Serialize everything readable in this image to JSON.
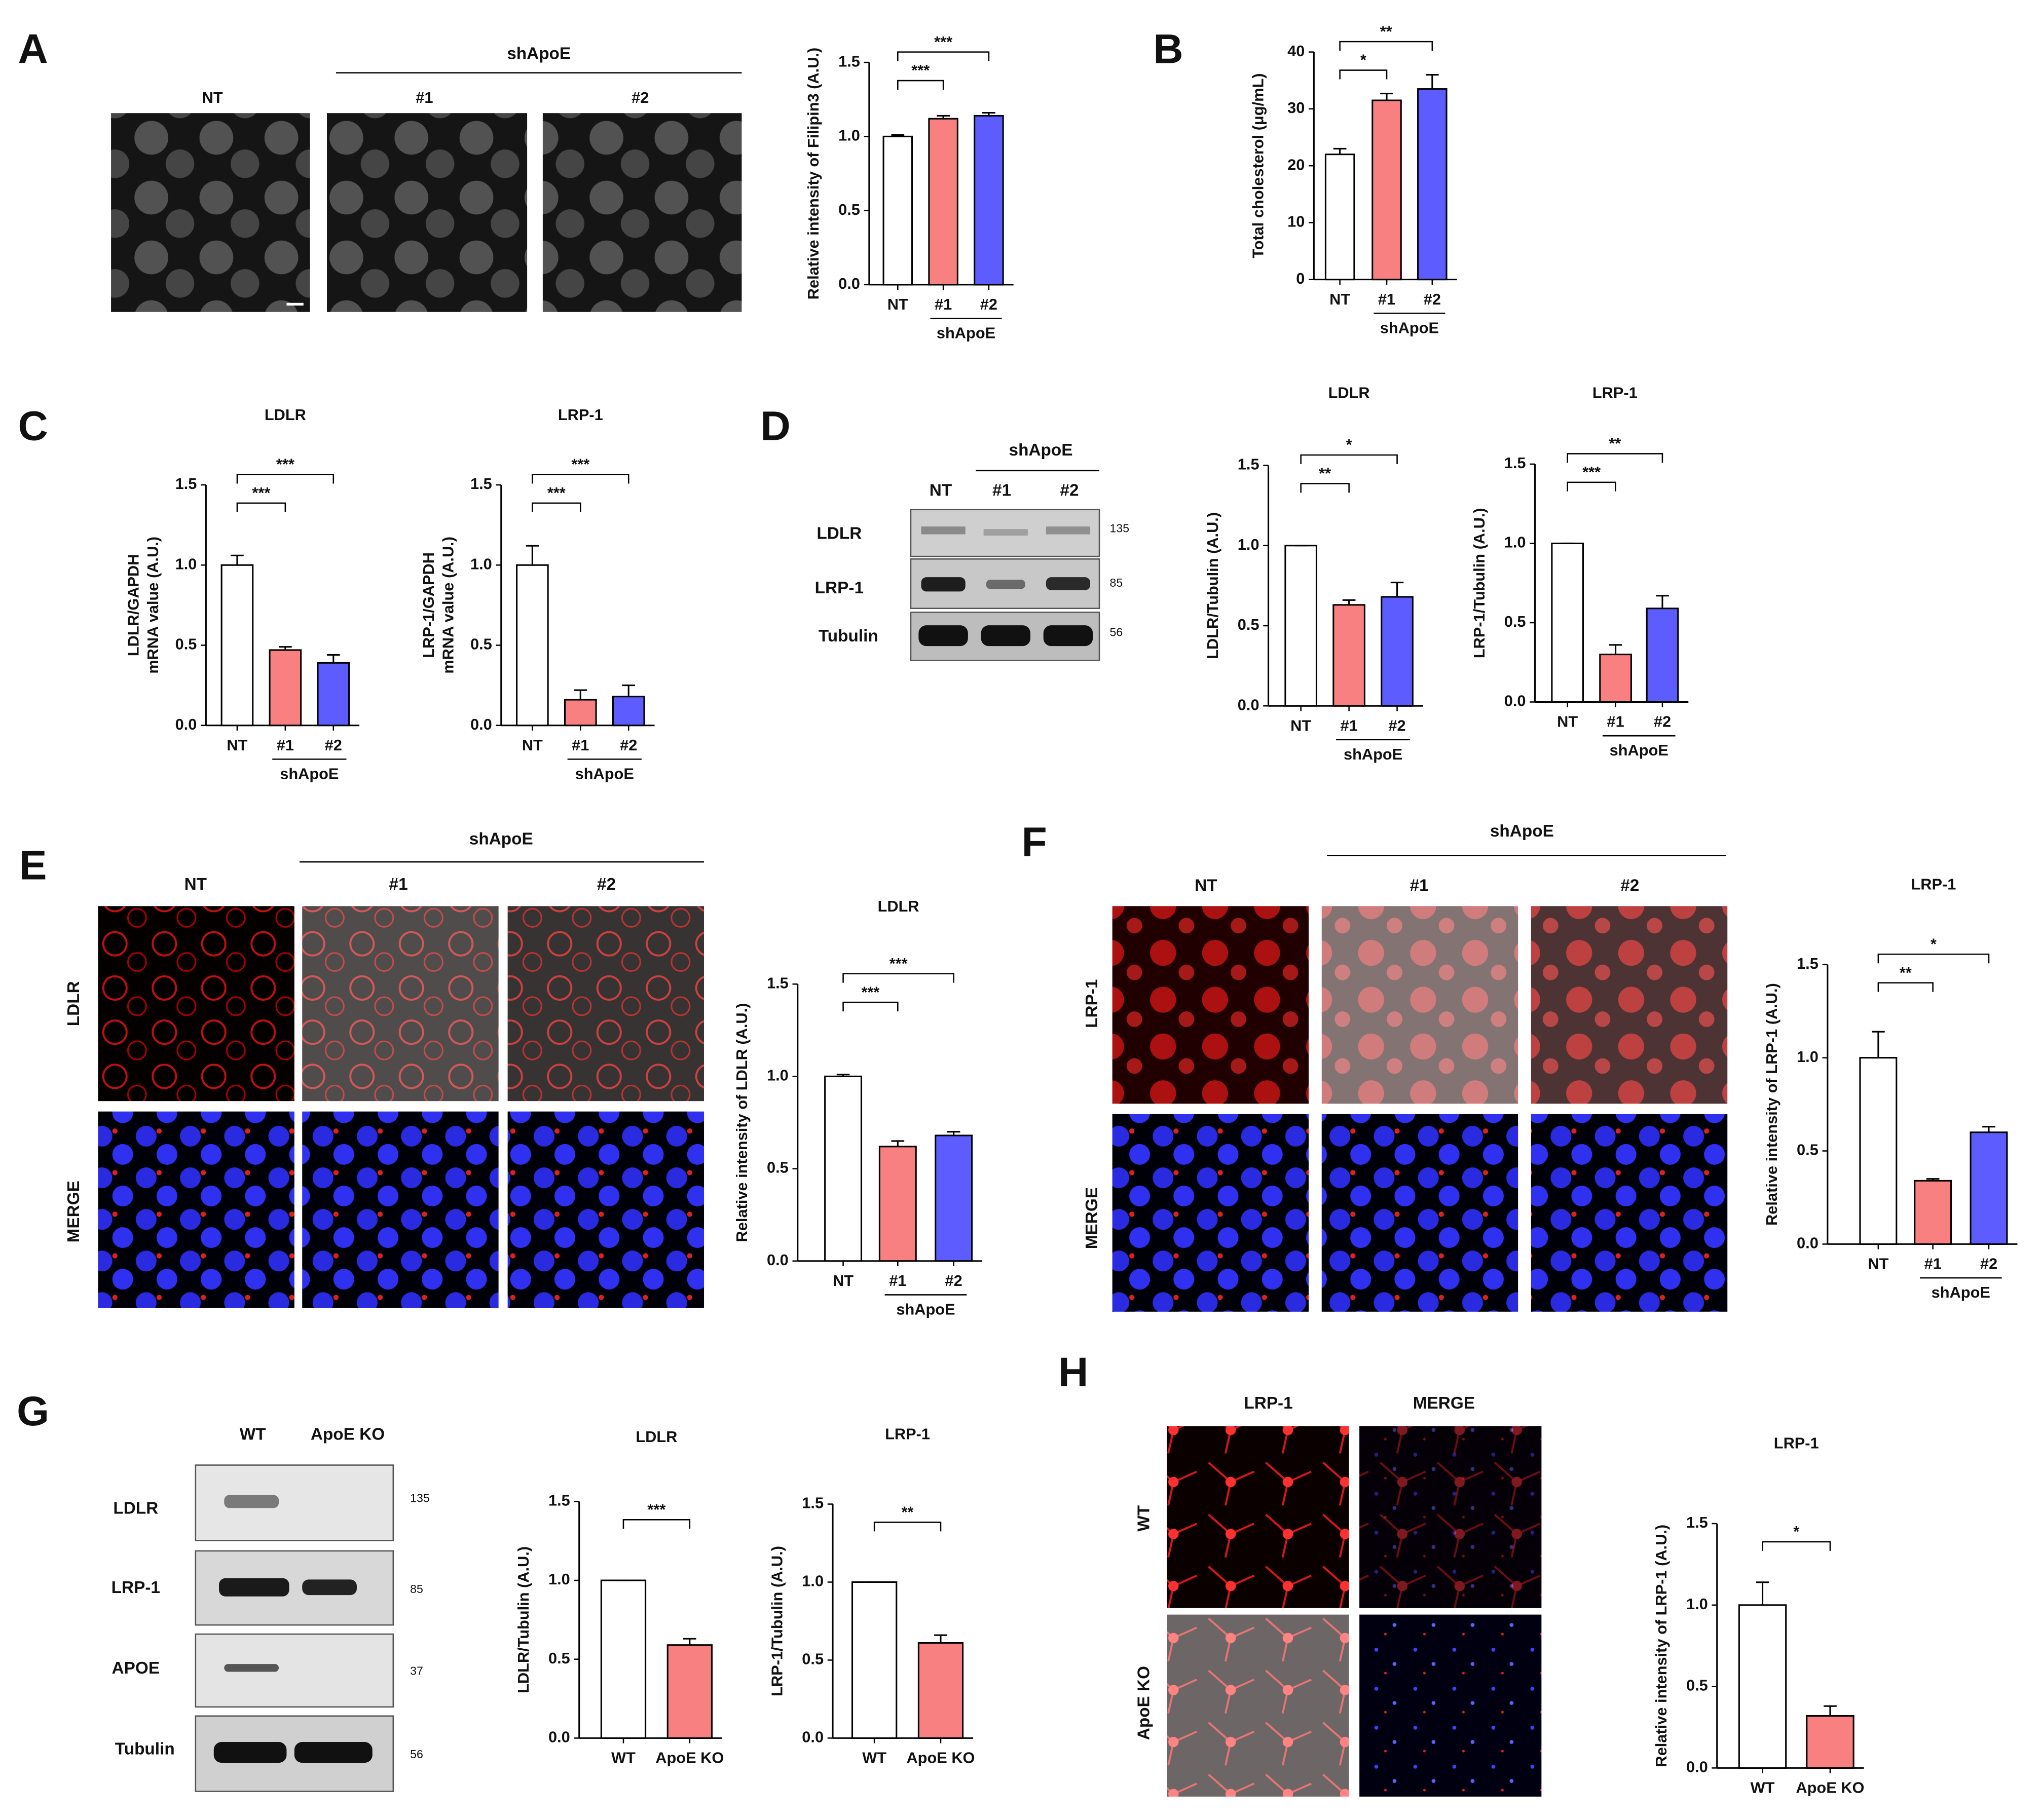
{
  "figure": {
    "panel_letters": [
      "A",
      "B",
      "C",
      "D",
      "E",
      "F",
      "G",
      "H"
    ],
    "A": {
      "group": "shApoE",
      "lanes": [
        "NT",
        "#1",
        "#2"
      ]
    },
    "D": {
      "group": "shApoE",
      "lanes": [
        "NT",
        "#1",
        "#2"
      ],
      "rows": [
        "LDLR",
        "LRP-1",
        "Tubulin"
      ],
      "markers": [
        "135",
        "85",
        "56"
      ]
    },
    "E": {
      "group": "shApoE",
      "lanes": [
        "NT",
        "#1",
        "#2"
      ],
      "rows": [
        "LDLR",
        "MERGE"
      ]
    },
    "F": {
      "group": "shApoE",
      "lanes": [
        "NT",
        "#1",
        "#2"
      ],
      "rows": [
        "LRP-1",
        "MERGE"
      ]
    },
    "G": {
      "lanes": [
        "WT",
        "ApoE KO"
      ],
      "rows": [
        "LDLR",
        "LRP-1",
        "APOE",
        "Tubulin"
      ],
      "markers": [
        "135",
        "85",
        "37",
        "56"
      ]
    },
    "H": {
      "columns": [
        "LRP-1",
        "MERGE"
      ],
      "rows": [
        "WT",
        "ApoE KO"
      ]
    }
  },
  "chart_data": [
    {
      "type": "bar",
      "ylabel": "Relative intensity of Filipin3 (A.U.)",
      "categories": [
        "NT",
        "#1",
        "#2"
      ],
      "group_label": "shApoE",
      "values": [
        1.0,
        1.12,
        1.14
      ],
      "error": [
        0.01,
        0.02,
        0.02
      ],
      "colors": [
        "#ffffff",
        "#f88080",
        "#5c5cff"
      ],
      "ylim": [
        0,
        1.5
      ],
      "yticks": [
        {
          "value": 0,
          "label": "0.0"
        },
        {
          "value": 0.5,
          "label": "0.5"
        },
        {
          "value": 1,
          "label": "1.0"
        },
        {
          "value": 1.5,
          "label": "1.5"
        }
      ],
      "annotations": [
        "***",
        "***"
      ]
    },
    {
      "type": "bar",
      "ylabel": "Total cholesterol (μg/mL)",
      "categories": [
        "NT",
        "#1",
        "#2"
      ],
      "group_label": "shApoE",
      "values": [
        22,
        31.5,
        33.5
      ],
      "error": [
        1,
        1.2,
        2.5
      ],
      "colors": [
        "#ffffff",
        "#f88080",
        "#5c5cff"
      ],
      "ylim": [
        0,
        40
      ],
      "yticks": [
        0,
        10,
        20,
        30,
        40
      ],
      "annotations": [
        "*",
        "**"
      ]
    },
    {
      "type": "bar",
      "title": "LDLR",
      "ylabel": [
        "LDLR/GAPDH",
        "mRNA value (A.U.)"
      ],
      "categories": [
        "NT",
        "#1",
        "#2"
      ],
      "group_label": "shApoE",
      "values": [
        1.0,
        0.47,
        0.39
      ],
      "error": [
        0.06,
        0.02,
        0.05
      ],
      "colors": [
        "#ffffff",
        "#f88080",
        "#5c5cff"
      ],
      "ylim": [
        0,
        1.5
      ],
      "yticks": [
        {
          "value": 0,
          "label": "0.0"
        },
        {
          "value": 0.5,
          "label": "0.5"
        },
        {
          "value": 1,
          "label": "1.0"
        },
        {
          "value": 1.5,
          "label": "1.5"
        }
      ],
      "annotations": [
        "***",
        "***"
      ]
    },
    {
      "type": "bar",
      "title": "LRP-1",
      "ylabel": [
        "LRP-1/GAPDH",
        "mRNA value (A.U.)"
      ],
      "categories": [
        "NT",
        "#1",
        "#2"
      ],
      "group_label": "shApoE",
      "values": [
        1.0,
        0.16,
        0.18
      ],
      "error": [
        0.12,
        0.06,
        0.07
      ],
      "colors": [
        "#ffffff",
        "#f88080",
        "#5c5cff"
      ],
      "ylim": [
        0,
        1.5
      ],
      "yticks": [
        {
          "value": 0,
          "label": "0.0"
        },
        {
          "value": 0.5,
          "label": "0.5"
        },
        {
          "value": 1,
          "label": "1.0"
        },
        {
          "value": 1.5,
          "label": "1.5"
        }
      ],
      "annotations": [
        "***",
        "***"
      ]
    },
    {
      "type": "bar",
      "title": "LDLR",
      "ylabel": "LDLR/Tubulin (A.U.)",
      "categories": [
        "NT",
        "#1",
        "#2"
      ],
      "group_label": "shApoE",
      "values": [
        1.0,
        0.63,
        0.68
      ],
      "error": [
        0,
        0.03,
        0.09
      ],
      "colors": [
        "#ffffff",
        "#f88080",
        "#5c5cff"
      ],
      "ylim": [
        0,
        1.5
      ],
      "yticks": [
        {
          "value": 0,
          "label": "0.0"
        },
        {
          "value": 0.5,
          "label": "0.5"
        },
        {
          "value": 1,
          "label": "1.0"
        },
        {
          "value": 1.5,
          "label": "1.5"
        }
      ],
      "annotations": [
        "**",
        "*"
      ]
    },
    {
      "type": "bar",
      "title": "LRP-1",
      "ylabel": "LRP-1/Tubulin (A.U.)",
      "categories": [
        "NT",
        "#1",
        "#2"
      ],
      "group_label": "shApoE",
      "values": [
        1.0,
        0.3,
        0.59
      ],
      "error": [
        0,
        0.06,
        0.08
      ],
      "colors": [
        "#ffffff",
        "#f88080",
        "#5c5cff"
      ],
      "ylim": [
        0,
        1.5
      ],
      "yticks": [
        {
          "value": 0,
          "label": "0.0"
        },
        {
          "value": 0.5,
          "label": "0.5"
        },
        {
          "value": 1,
          "label": "1.0"
        },
        {
          "value": 1.5,
          "label": "1.5"
        }
      ],
      "annotations": [
        "***",
        "**"
      ]
    },
    {
      "type": "bar",
      "title": "LDLR",
      "ylabel": "Relative intensity of LDLR (A.U.)",
      "categories": [
        "NT",
        "#1",
        "#2"
      ],
      "group_label": "shApoE",
      "values": [
        1.0,
        0.62,
        0.68
      ],
      "error": [
        0.01,
        0.03,
        0.02
      ],
      "colors": [
        "#ffffff",
        "#f88080",
        "#5c5cff"
      ],
      "ylim": [
        0,
        1.5
      ],
      "yticks": [
        {
          "value": 0,
          "label": "0.0"
        },
        {
          "value": 0.5,
          "label": "0.5"
        },
        {
          "value": 1,
          "label": "1.0"
        },
        {
          "value": 1.5,
          "label": "1.5"
        }
      ],
      "annotations": [
        "***",
        "***"
      ]
    },
    {
      "type": "bar",
      "title": "LRP-1",
      "ylabel": "Relative intensity of LRP-1 (A.U.)",
      "categories": [
        "NT",
        "#1",
        "#2"
      ],
      "group_label": "shApoE",
      "values": [
        1.0,
        0.34,
        0.6
      ],
      "error": [
        0.14,
        0.01,
        0.03
      ],
      "colors": [
        "#ffffff",
        "#f88080",
        "#5c5cff"
      ],
      "ylim": [
        0,
        1.5
      ],
      "yticks": [
        {
          "value": 0,
          "label": "0.0"
        },
        {
          "value": 0.5,
          "label": "0.5"
        },
        {
          "value": 1,
          "label": "1.0"
        },
        {
          "value": 1.5,
          "label": "1.5"
        }
      ],
      "annotations": [
        "**",
        "*"
      ]
    },
    {
      "type": "bar",
      "title": "LDLR",
      "ylabel": "LDLR/Tubulin (A.U.)",
      "categories": [
        "WT",
        "ApoE KO"
      ],
      "values": [
        1.0,
        0.59
      ],
      "error": [
        0,
        0.04
      ],
      "colors": [
        "#ffffff",
        "#f88080"
      ],
      "ylim": [
        0,
        1.5
      ],
      "yticks": [
        {
          "value": 0,
          "label": "0.0"
        },
        {
          "value": 0.5,
          "label": "0.5"
        },
        {
          "value": 1,
          "label": "1.0"
        },
        {
          "value": 1.5,
          "label": "1.5"
        }
      ],
      "annotations": [
        "***"
      ]
    },
    {
      "type": "bar",
      "title": "LRP-1",
      "ylabel": "LRP-1/Tubulin (A.U.)",
      "categories": [
        "WT",
        "ApoE KO"
      ],
      "values": [
        1.0,
        0.61
      ],
      "error": [
        0,
        0.05
      ],
      "colors": [
        "#ffffff",
        "#f88080"
      ],
      "ylim": [
        0,
        1.5
      ],
      "yticks": [
        {
          "value": 0,
          "label": "0.0"
        },
        {
          "value": 0.5,
          "label": "0.5"
        },
        {
          "value": 1,
          "label": "1.0"
        },
        {
          "value": 1.5,
          "label": "1.5"
        }
      ],
      "annotations": [
        "**"
      ]
    },
    {
      "type": "bar",
      "title": "LRP-1",
      "ylabel": "Relative intensity of LRP-1 (A.U.)",
      "categories": [
        "WT",
        "ApoE KO"
      ],
      "values": [
        1.0,
        0.32
      ],
      "error": [
        0.14,
        0.06
      ],
      "colors": [
        "#ffffff",
        "#f88080"
      ],
      "ylim": [
        0,
        1.5
      ],
      "yticks": [
        {
          "value": 0,
          "label": "0.0"
        },
        {
          "value": 0.5,
          "label": "0.5"
        },
        {
          "value": 1,
          "label": "1.0"
        },
        {
          "value": 1.5,
          "label": "1.5"
        }
      ],
      "annotations": [
        "*"
      ]
    }
  ]
}
